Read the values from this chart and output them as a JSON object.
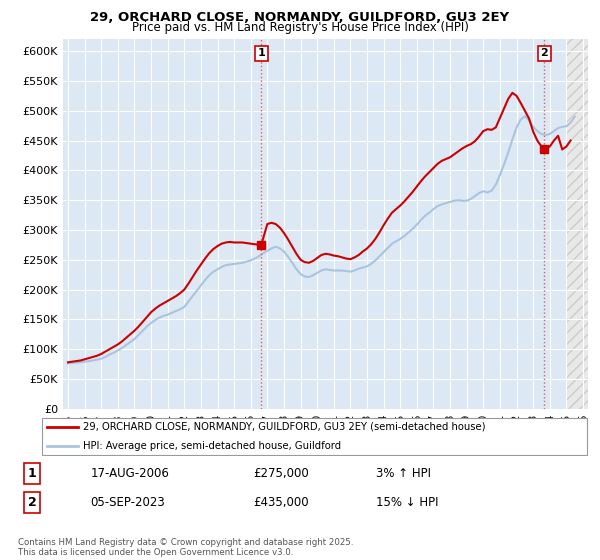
{
  "title": "29, ORCHARD CLOSE, NORMANDY, GUILDFORD, GU3 2EY",
  "subtitle": "Price paid vs. HM Land Registry's House Price Index (HPI)",
  "background_color": "#ffffff",
  "plot_bg_color": "#dce9f5",
  "grid_color": "#ffffff",
  "hatch_bg_color": "#e8e8e8",
  "ylim": [
    0,
    620000
  ],
  "yticks": [
    0,
    50000,
    100000,
    150000,
    200000,
    250000,
    300000,
    350000,
    400000,
    450000,
    500000,
    550000,
    600000
  ],
  "ytick_labels": [
    "£0",
    "£50K",
    "£100K",
    "£150K",
    "£200K",
    "£250K",
    "£300K",
    "£350K",
    "£400K",
    "£450K",
    "£500K",
    "£550K",
    "£600K"
  ],
  "xlim_start": 1994.7,
  "xlim_end": 2026.3,
  "hatch_start": 2025.0,
  "xtick_years": [
    1995,
    1996,
    1997,
    1998,
    1999,
    2000,
    2001,
    2002,
    2003,
    2004,
    2005,
    2006,
    2007,
    2008,
    2009,
    2010,
    2011,
    2012,
    2013,
    2014,
    2015,
    2016,
    2017,
    2018,
    2019,
    2020,
    2021,
    2022,
    2023,
    2024,
    2025,
    2026
  ],
  "hpi_color": "#aac4e0",
  "price_color": "#cc0000",
  "marker_color": "#cc0000",
  "sale1_x": 2006.633,
  "sale1_y": 275000,
  "sale2_x": 2023.677,
  "sale2_y": 435000,
  "vline_color": "#e06060",
  "legend_label_price": "29, ORCHARD CLOSE, NORMANDY, GUILDFORD, GU3 2EY (semi-detached house)",
  "legend_label_hpi": "HPI: Average price, semi-detached house, Guildford",
  "annotation1_label": "1",
  "annotation2_label": "2",
  "table_row1": [
    "1",
    "17-AUG-2006",
    "£275,000",
    "3% ↑ HPI"
  ],
  "table_row2": [
    "2",
    "05-SEP-2023",
    "£435,000",
    "15% ↓ HPI"
  ],
  "footer": "Contains HM Land Registry data © Crown copyright and database right 2025.\nThis data is licensed under the Open Government Licence v3.0.",
  "hpi_data_x": [
    1995.0,
    1995.25,
    1995.5,
    1995.75,
    1996.0,
    1996.25,
    1996.5,
    1996.75,
    1997.0,
    1997.25,
    1997.5,
    1997.75,
    1998.0,
    1998.25,
    1998.5,
    1998.75,
    1999.0,
    1999.25,
    1999.5,
    1999.75,
    2000.0,
    2000.25,
    2000.5,
    2000.75,
    2001.0,
    2001.25,
    2001.5,
    2001.75,
    2002.0,
    2002.25,
    2002.5,
    2002.75,
    2003.0,
    2003.25,
    2003.5,
    2003.75,
    2004.0,
    2004.25,
    2004.5,
    2004.75,
    2005.0,
    2005.25,
    2005.5,
    2005.75,
    2006.0,
    2006.25,
    2006.5,
    2006.75,
    2007.0,
    2007.25,
    2007.5,
    2007.75,
    2008.0,
    2008.25,
    2008.5,
    2008.75,
    2009.0,
    2009.25,
    2009.5,
    2009.75,
    2010.0,
    2010.25,
    2010.5,
    2010.75,
    2011.0,
    2011.25,
    2011.5,
    2011.75,
    2012.0,
    2012.25,
    2012.5,
    2012.75,
    2013.0,
    2013.25,
    2013.5,
    2013.75,
    2014.0,
    2014.25,
    2014.5,
    2014.75,
    2015.0,
    2015.25,
    2015.5,
    2015.75,
    2016.0,
    2016.25,
    2016.5,
    2016.75,
    2017.0,
    2017.25,
    2017.5,
    2017.75,
    2018.0,
    2018.25,
    2018.5,
    2018.75,
    2019.0,
    2019.25,
    2019.5,
    2019.75,
    2020.0,
    2020.25,
    2020.5,
    2020.75,
    2021.0,
    2021.25,
    2021.5,
    2021.75,
    2022.0,
    2022.25,
    2022.5,
    2022.75,
    2023.0,
    2023.25,
    2023.5,
    2023.75,
    2024.0,
    2024.25,
    2024.5,
    2024.75,
    2025.0,
    2025.25,
    2025.5
  ],
  "hpi_data_y": [
    76000,
    77000,
    77500,
    78000,
    79000,
    80000,
    81000,
    82500,
    84000,
    87000,
    91000,
    94000,
    98000,
    102000,
    107000,
    112000,
    117000,
    124000,
    131000,
    138000,
    144000,
    149000,
    153000,
    156000,
    158000,
    161000,
    164000,
    167000,
    171000,
    180000,
    189000,
    198000,
    207000,
    216000,
    224000,
    230000,
    234000,
    238000,
    241000,
    242000,
    243000,
    244000,
    245000,
    247000,
    249000,
    252000,
    256000,
    261000,
    265000,
    269000,
    272000,
    269000,
    264000,
    255000,
    245000,
    234000,
    226000,
    222000,
    221000,
    224000,
    228000,
    232000,
    234000,
    233000,
    232000,
    232000,
    232000,
    231000,
    230000,
    232000,
    235000,
    237000,
    239000,
    243000,
    249000,
    256000,
    263000,
    270000,
    277000,
    281000,
    285000,
    290000,
    296000,
    302000,
    309000,
    317000,
    324000,
    329000,
    335000,
    340000,
    343000,
    345000,
    347000,
    349000,
    350000,
    349000,
    349000,
    352000,
    357000,
    362000,
    365000,
    363000,
    366000,
    376000,
    392000,
    410000,
    430000,
    452000,
    472000,
    485000,
    491000,
    484000,
    473000,
    466000,
    461000,
    459000,
    461000,
    466000,
    471000,
    473000,
    474000,
    480000,
    490000
  ],
  "price_data_x": [
    1995.0,
    1995.25,
    1995.5,
    1995.75,
    1996.0,
    1996.25,
    1996.5,
    1996.75,
    1997.0,
    1997.25,
    1997.5,
    1997.75,
    1998.0,
    1998.25,
    1998.5,
    1998.75,
    1999.0,
    1999.25,
    1999.5,
    1999.75,
    2000.0,
    2000.25,
    2000.5,
    2000.75,
    2001.0,
    2001.25,
    2001.5,
    2001.75,
    2002.0,
    2002.25,
    2002.5,
    2002.75,
    2003.0,
    2003.25,
    2003.5,
    2003.75,
    2004.0,
    2004.25,
    2004.5,
    2004.75,
    2005.0,
    2005.25,
    2005.5,
    2005.75,
    2006.0,
    2006.25,
    2006.5,
    2006.633,
    2007.0,
    2007.25,
    2007.5,
    2007.75,
    2008.0,
    2008.25,
    2008.5,
    2008.75,
    2009.0,
    2009.25,
    2009.5,
    2009.75,
    2010.0,
    2010.25,
    2010.5,
    2010.75,
    2011.0,
    2011.25,
    2011.5,
    2011.75,
    2012.0,
    2012.25,
    2012.5,
    2012.75,
    2013.0,
    2013.25,
    2013.5,
    2013.75,
    2014.0,
    2014.25,
    2014.5,
    2014.75,
    2015.0,
    2015.25,
    2015.5,
    2015.75,
    2016.0,
    2016.25,
    2016.5,
    2016.75,
    2017.0,
    2017.25,
    2017.5,
    2017.75,
    2018.0,
    2018.25,
    2018.5,
    2018.75,
    2019.0,
    2019.25,
    2019.5,
    2019.75,
    2020.0,
    2020.25,
    2020.5,
    2020.75,
    2021.0,
    2021.25,
    2021.5,
    2021.75,
    2022.0,
    2022.25,
    2022.5,
    2022.75,
    2023.0,
    2023.25,
    2023.5,
    2023.677,
    2024.0,
    2024.25,
    2024.5,
    2024.75,
    2025.0,
    2025.25
  ],
  "price_data_y": [
    78000,
    79000,
    80000,
    81000,
    83000,
    85000,
    87000,
    89000,
    92000,
    96000,
    100000,
    104000,
    108000,
    113000,
    119000,
    125000,
    131000,
    138000,
    146000,
    154000,
    162000,
    168000,
    173000,
    177000,
    181000,
    185000,
    189000,
    194000,
    200000,
    210000,
    221000,
    232000,
    242000,
    252000,
    261000,
    268000,
    273000,
    277000,
    279000,
    280000,
    279000,
    279000,
    279000,
    278000,
    277000,
    276000,
    275000,
    275000,
    310000,
    312000,
    310000,
    304000,
    295000,
    284000,
    272000,
    260000,
    250000,
    246000,
    245000,
    248000,
    253000,
    258000,
    260000,
    259000,
    257000,
    256000,
    254000,
    252000,
    251000,
    254000,
    258000,
    264000,
    269000,
    276000,
    285000,
    296000,
    308000,
    319000,
    329000,
    335000,
    341000,
    348000,
    356000,
    364000,
    373000,
    382000,
    390000,
    397000,
    404000,
    411000,
    416000,
    419000,
    422000,
    427000,
    432000,
    437000,
    441000,
    444000,
    449000,
    457000,
    466000,
    469000,
    468000,
    472000,
    488000,
    504000,
    520000,
    530000,
    525000,
    513000,
    500000,
    487000,
    465000,
    450000,
    440000,
    435000,
    440000,
    450000,
    458000,
    435000,
    440000,
    450000
  ]
}
